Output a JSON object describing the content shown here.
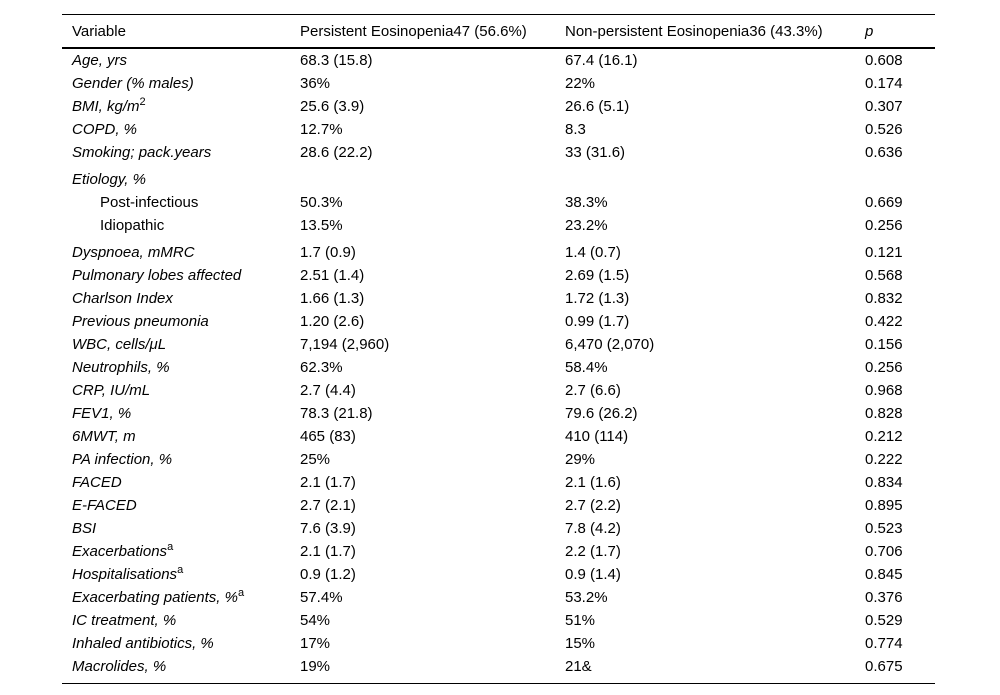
{
  "page": {
    "background_color": "#ffffff",
    "text_color": "#000000"
  },
  "table": {
    "columns": [
      {
        "label": "Variable",
        "italic": false
      },
      {
        "label": "Persistent Eosinopenia47 (56.6%)",
        "italic": false
      },
      {
        "label": "Non-persistent Eosinopenia36 (43.3%)",
        "italic": false
      },
      {
        "label": "p",
        "italic": true
      }
    ],
    "rows": [
      {
        "label": "Age, yrs",
        "sup": "",
        "italic": true,
        "indent": false,
        "gap_before": false,
        "values": [
          "68.3 (15.8)",
          "67.4 (16.1)",
          "0.608"
        ]
      },
      {
        "label": "Gender (% males)",
        "sup": "",
        "italic": true,
        "indent": false,
        "gap_before": false,
        "values": [
          "36%",
          "22%",
          "0.174"
        ]
      },
      {
        "label": "BMI, kg/m",
        "sup": "2",
        "italic": true,
        "indent": false,
        "gap_before": false,
        "values": [
          "25.6 (3.9)",
          "26.6 (5.1)",
          "0.307"
        ]
      },
      {
        "label": "COPD, %",
        "sup": "",
        "italic": true,
        "indent": false,
        "gap_before": false,
        "values": [
          "12.7%",
          "8.3",
          "0.526"
        ]
      },
      {
        "label": "Smoking; pack.years",
        "sup": "",
        "italic": true,
        "indent": false,
        "gap_before": false,
        "values": [
          "28.6 (22.2)",
          "33 (31.6)",
          "0.636"
        ]
      },
      {
        "label": "Etiology, %",
        "sup": "",
        "italic": true,
        "indent": false,
        "gap_before": true,
        "values": [
          "",
          "",
          ""
        ]
      },
      {
        "label": "Post-infectious",
        "sup": "",
        "italic": false,
        "indent": true,
        "gap_before": false,
        "values": [
          "50.3%",
          "38.3%",
          "0.669"
        ]
      },
      {
        "label": "Idiopathic",
        "sup": "",
        "italic": false,
        "indent": true,
        "gap_before": false,
        "values": [
          "13.5%",
          "23.2%",
          "0.256"
        ]
      },
      {
        "label": "Dyspnoea, mMRC",
        "sup": "",
        "italic": true,
        "indent": false,
        "gap_before": true,
        "values": [
          "1.7 (0.9)",
          "1.4 (0.7)",
          "0.121"
        ]
      },
      {
        "label": "Pulmonary lobes affected",
        "sup": "",
        "italic": true,
        "indent": false,
        "gap_before": false,
        "values": [
          "2.51 (1.4)",
          "2.69 (1.5)",
          "0.568"
        ]
      },
      {
        "label": "Charlson Index",
        "sup": "",
        "italic": true,
        "indent": false,
        "gap_before": false,
        "values": [
          "1.66 (1.3)",
          "1.72 (1.3)",
          "0.832"
        ]
      },
      {
        "label": "Previous pneumonia",
        "sup": "",
        "italic": true,
        "indent": false,
        "gap_before": false,
        "values": [
          "1.20 (2.6)",
          "0.99 (1.7)",
          "0.422"
        ]
      },
      {
        "label": "WBC, cells/μL",
        "sup": "",
        "italic": true,
        "indent": false,
        "gap_before": false,
        "values": [
          "7,194 (2,960)",
          "6,470 (2,070)",
          "0.156"
        ]
      },
      {
        "label": "Neutrophils, %",
        "sup": "",
        "italic": true,
        "indent": false,
        "gap_before": false,
        "values": [
          "62.3%",
          "58.4%",
          "0.256"
        ]
      },
      {
        "label": "CRP, IU/mL",
        "sup": "",
        "italic": true,
        "indent": false,
        "gap_before": false,
        "values": [
          "2.7 (4.4)",
          "2.7 (6.6)",
          "0.968"
        ]
      },
      {
        "label": "FEV1, %",
        "sup": "",
        "italic": true,
        "indent": false,
        "gap_before": false,
        "values": [
          "78.3 (21.8)",
          "79.6 (26.2)",
          "0.828"
        ]
      },
      {
        "label": "6MWT, m",
        "sup": "",
        "italic": true,
        "indent": false,
        "gap_before": false,
        "values": [
          "465 (83)",
          "410 (114)",
          "0.212"
        ]
      },
      {
        "label": "PA infection, %",
        "sup": "",
        "italic": true,
        "indent": false,
        "gap_before": false,
        "values": [
          "25%",
          "29%",
          "0.222"
        ]
      },
      {
        "label": "FACED",
        "sup": "",
        "italic": true,
        "indent": false,
        "gap_before": false,
        "values": [
          "2.1 (1.7)",
          "2.1 (1.6)",
          "0.834"
        ]
      },
      {
        "label": "E-FACED",
        "sup": "",
        "italic": true,
        "indent": false,
        "gap_before": false,
        "values": [
          "2.7 (2.1)",
          "2.7 (2.2)",
          "0.895"
        ]
      },
      {
        "label": "BSI",
        "sup": "",
        "italic": true,
        "indent": false,
        "gap_before": false,
        "values": [
          "7.6 (3.9)",
          "7.8 (4.2)",
          "0.523"
        ]
      },
      {
        "label": "Exacerbations",
        "sup": "a",
        "italic": true,
        "indent": false,
        "gap_before": false,
        "values": [
          "2.1 (1.7)",
          "2.2 (1.7)",
          "0.706"
        ]
      },
      {
        "label": "Hospitalisations",
        "sup": "a",
        "italic": true,
        "indent": false,
        "gap_before": false,
        "values": [
          "0.9 (1.2)",
          "0.9 (1.4)",
          "0.845"
        ]
      },
      {
        "label": "Exacerbating patients, %",
        "sup": "a",
        "italic": true,
        "indent": false,
        "gap_before": false,
        "values": [
          "57.4%",
          "53.2%",
          "0.376"
        ]
      },
      {
        "label": "IC treatment, %",
        "sup": "",
        "italic": true,
        "indent": false,
        "gap_before": false,
        "values": [
          "54%",
          "51%",
          "0.529"
        ]
      },
      {
        "label": "Inhaled antibiotics, %",
        "sup": "",
        "italic": true,
        "indent": false,
        "gap_before": false,
        "values": [
          "17%",
          "15%",
          "0.774"
        ]
      },
      {
        "label": "Macrolides, %",
        "sup": "",
        "italic": true,
        "indent": false,
        "gap_before": false,
        "values": [
          "19%",
          "21&",
          "0.675"
        ]
      }
    ]
  }
}
